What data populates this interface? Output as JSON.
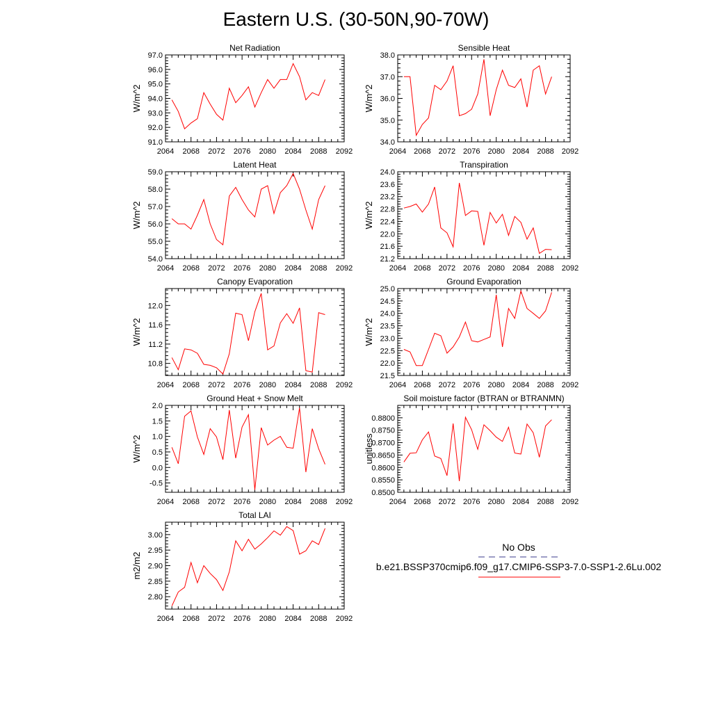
{
  "title": "Eastern U.S. (30-50N,90-70W)",
  "colors": {
    "model": "#ff0000",
    "obs": "#3a3a8c",
    "axis": "#000000"
  },
  "legend": {
    "obs_label": "No Obs",
    "model_label": "b.e21.BSSP370cmip6.f09_g17.CMIP6-SSP3-7.0-SSP1-2.6Lu.002"
  },
  "chart_data": [
    {
      "id": "net-radiation",
      "type": "line",
      "title": "Net Radiation",
      "ylabel": "W/m^2",
      "xlim": [
        2064,
        2092
      ],
      "ylim": [
        91,
        97
      ],
      "xticks": [
        2064,
        2068,
        2072,
        2076,
        2080,
        2084,
        2088,
        2092
      ],
      "xtick_labels": [
        "2064",
        "2068",
        "2072",
        "2076",
        "2080",
        "2084",
        "2088",
        "2092"
      ],
      "yticks": [
        91,
        92,
        93,
        94,
        95,
        96,
        97
      ],
      "ytick_labels": [
        "91.0",
        "92.0",
        "93.0",
        "94.0",
        "95.0",
        "96.0",
        "97.0"
      ],
      "x": [
        2065,
        2066,
        2067,
        2068,
        2069,
        2070,
        2071,
        2072,
        2073,
        2074,
        2075,
        2076,
        2077,
        2078,
        2079,
        2080,
        2081,
        2082,
        2083,
        2084,
        2085,
        2086,
        2087,
        2088,
        2089
      ],
      "y": [
        93.9,
        93.1,
        91.9,
        92.3,
        92.6,
        94.4,
        93.6,
        92.9,
        92.5,
        94.7,
        93.7,
        94.2,
        94.8,
        93.4,
        94.4,
        95.3,
        94.7,
        95.3,
        95.3,
        96.4,
        95.5,
        93.9,
        94.4,
        94.2,
        95.3
      ]
    },
    {
      "id": "sensible-heat",
      "type": "line",
      "title": "Sensible Heat",
      "ylabel": "W/m^2",
      "xlim": [
        2064,
        2092
      ],
      "ylim": [
        34,
        38
      ],
      "xticks": [
        2064,
        2068,
        2072,
        2076,
        2080,
        2084,
        2088,
        2092
      ],
      "xtick_labels": [
        "2064",
        "2068",
        "2072",
        "2076",
        "2080",
        "2084",
        "2088",
        "2092"
      ],
      "yticks": [
        34,
        35,
        36,
        37,
        38
      ],
      "ytick_labels": [
        "34.0",
        "35.0",
        "36.0",
        "37.0",
        "38.0"
      ],
      "x": [
        2065,
        2066,
        2067,
        2068,
        2069,
        2070,
        2071,
        2072,
        2073,
        2074,
        2075,
        2076,
        2077,
        2078,
        2079,
        2080,
        2081,
        2082,
        2083,
        2084,
        2085,
        2086,
        2087,
        2088,
        2089
      ],
      "y": [
        37.0,
        37.0,
        34.3,
        34.8,
        35.1,
        36.6,
        36.4,
        36.8,
        37.5,
        35.2,
        35.3,
        35.5,
        36.2,
        37.8,
        35.2,
        36.4,
        37.3,
        36.6,
        36.5,
        36.9,
        35.6,
        37.3,
        37.5,
        36.2,
        37.0
      ]
    },
    {
      "id": "latent-heat",
      "type": "line",
      "title": "Latent Heat",
      "ylabel": "W/m^2",
      "xlim": [
        2064,
        2092
      ],
      "ylim": [
        54,
        59
      ],
      "xticks": [
        2064,
        2068,
        2072,
        2076,
        2080,
        2084,
        2088,
        2092
      ],
      "xtick_labels": [
        "2064",
        "2068",
        "2072",
        "2076",
        "2080",
        "2084",
        "2088",
        "2092"
      ],
      "yticks": [
        54,
        55,
        56,
        57,
        58,
        59
      ],
      "ytick_labels": [
        "54.0",
        "55.0",
        "56.0",
        "57.0",
        "58.0",
        "59.0"
      ],
      "x": [
        2065,
        2066,
        2067,
        2068,
        2069,
        2070,
        2071,
        2072,
        2073,
        2074,
        2075,
        2076,
        2077,
        2078,
        2079,
        2080,
        2081,
        2082,
        2083,
        2084,
        2085,
        2086,
        2087,
        2088,
        2089
      ],
      "y": [
        56.3,
        56.0,
        56.0,
        55.7,
        56.5,
        57.4,
        56.0,
        55.1,
        54.8,
        57.6,
        58.1,
        57.4,
        56.8,
        56.4,
        58.0,
        58.2,
        56.6,
        57.8,
        58.2,
        58.9,
        58.0,
        56.8,
        55.7,
        57.4,
        58.2
      ]
    },
    {
      "id": "transpiration",
      "type": "line",
      "title": "Transpiration",
      "ylabel": "W/m^2",
      "xlim": [
        2064,
        2092
      ],
      "ylim": [
        21.2,
        24.0
      ],
      "xticks": [
        2064,
        2068,
        2072,
        2076,
        2080,
        2084,
        2088,
        2092
      ],
      "xtick_labels": [
        "2064",
        "2068",
        "2072",
        "2076",
        "2080",
        "2084",
        "2088",
        "2092"
      ],
      "yticks": [
        21.2,
        21.6,
        22.0,
        22.4,
        22.8,
        23.2,
        23.6,
        24.0
      ],
      "ytick_labels": [
        "21.2",
        "21.6",
        "22.0",
        "22.4",
        "22.8",
        "23.2",
        "23.6",
        "24.0"
      ],
      "x": [
        2065,
        2066,
        2067,
        2068,
        2069,
        2070,
        2071,
        2072,
        2073,
        2074,
        2075,
        2076,
        2077,
        2078,
        2079,
        2080,
        2081,
        2082,
        2083,
        2084,
        2085,
        2086,
        2087,
        2088,
        2089
      ],
      "y": [
        22.83,
        22.88,
        22.96,
        22.7,
        22.96,
        23.51,
        22.19,
        22.03,
        21.58,
        23.64,
        22.59,
        22.74,
        22.72,
        21.63,
        22.69,
        22.35,
        22.63,
        21.95,
        22.56,
        22.37,
        21.83,
        22.19,
        21.37,
        21.5,
        21.49
      ]
    },
    {
      "id": "canopy-evaporation",
      "type": "line",
      "title": "Canopy Evaporation",
      "ylabel": "W/m^2",
      "xlim": [
        2064,
        2092
      ],
      "ylim": [
        10.55,
        12.35
      ],
      "xticks": [
        2064,
        2068,
        2072,
        2076,
        2080,
        2084,
        2088,
        2092
      ],
      "xtick_labels": [
        "2064",
        "2068",
        "2072",
        "2076",
        "2080",
        "2084",
        "2088",
        "2092"
      ],
      "yticks": [
        10.8,
        11.2,
        11.6,
        12.0
      ],
      "ytick_labels": [
        "10.8",
        "11.2",
        "11.6",
        "12.0"
      ],
      "x": [
        2065,
        2066,
        2067,
        2068,
        2069,
        2070,
        2071,
        2072,
        2073,
        2074,
        2075,
        2076,
        2077,
        2078,
        2079,
        2080,
        2081,
        2082,
        2083,
        2084,
        2085,
        2086,
        2087,
        2088,
        2089
      ],
      "y": [
        10.92,
        10.67,
        11.1,
        11.08,
        11.01,
        10.78,
        10.76,
        10.71,
        10.58,
        11.0,
        11.84,
        11.81,
        11.27,
        11.87,
        12.25,
        11.08,
        11.16,
        11.64,
        11.83,
        11.63,
        11.95,
        10.65,
        10.62,
        11.85,
        11.81
      ]
    },
    {
      "id": "ground-evaporation",
      "type": "line",
      "title": "Ground Evaporation",
      "ylabel": "W/m^2",
      "xlim": [
        2064,
        2092
      ],
      "ylim": [
        21.5,
        25.0
      ],
      "xticks": [
        2064,
        2068,
        2072,
        2076,
        2080,
        2084,
        2088,
        2092
      ],
      "xtick_labels": [
        "2064",
        "2068",
        "2072",
        "2076",
        "2080",
        "2084",
        "2088",
        "2092"
      ],
      "yticks": [
        21.5,
        22.0,
        22.5,
        23.0,
        23.5,
        24.0,
        24.5,
        25.0
      ],
      "ytick_labels": [
        "21.5",
        "22.0",
        "22.5",
        "23.0",
        "23.5",
        "24.0",
        "24.5",
        "25.0"
      ],
      "x": [
        2065,
        2066,
        2067,
        2068,
        2069,
        2070,
        2071,
        2072,
        2073,
        2074,
        2075,
        2076,
        2077,
        2078,
        2079,
        2080,
        2081,
        2082,
        2083,
        2084,
        2085,
        2086,
        2087,
        2088,
        2089
      ],
      "y": [
        22.55,
        22.45,
        21.9,
        21.9,
        22.55,
        23.2,
        23.1,
        22.4,
        22.65,
        23.05,
        23.65,
        22.9,
        22.85,
        22.95,
        23.05,
        24.75,
        22.65,
        24.2,
        23.8,
        24.9,
        24.2,
        24.0,
        23.8,
        24.1,
        24.85
      ]
    },
    {
      "id": "ground-heat-snow-melt",
      "type": "line",
      "title": "Ground Heat + Snow Melt",
      "ylabel": "W/m^2",
      "xlim": [
        2064,
        2092
      ],
      "ylim": [
        -0.8,
        2.0
      ],
      "xticks": [
        2064,
        2068,
        2072,
        2076,
        2080,
        2084,
        2088,
        2092
      ],
      "xtick_labels": [
        "2064",
        "2068",
        "2072",
        "2076",
        "2080",
        "2084",
        "2088",
        "2092"
      ],
      "yticks": [
        -0.5,
        0.0,
        0.5,
        1.0,
        1.5,
        2.0
      ],
      "ytick_labels": [
        "-0.5",
        "0.0",
        "0.5",
        "1.0",
        "1.5",
        "2.0"
      ],
      "x": [
        2065,
        2066,
        2067,
        2068,
        2069,
        2070,
        2071,
        2072,
        2073,
        2074,
        2075,
        2076,
        2077,
        2078,
        2079,
        2080,
        2081,
        2082,
        2083,
        2084,
        2085,
        2086,
        2087,
        2088,
        2089
      ],
      "y": [
        0.65,
        0.12,
        1.65,
        1.82,
        0.98,
        0.42,
        1.25,
        0.98,
        0.25,
        1.85,
        0.3,
        1.3,
        1.7,
        -0.72,
        1.28,
        0.72,
        0.88,
        1.0,
        0.65,
        0.62,
        1.92,
        -0.15,
        1.25,
        0.6,
        0.1
      ]
    },
    {
      "id": "soil-moisture-factor",
      "type": "line",
      "title": "Soil moisture factor (BTRAN or BTRANMN)",
      "ylabel": "unitless",
      "xlim": [
        2064,
        2092
      ],
      "ylim": [
        0.85,
        0.885
      ],
      "xticks": [
        2064,
        2068,
        2072,
        2076,
        2080,
        2084,
        2088,
        2092
      ],
      "xtick_labels": [
        "2064",
        "2068",
        "2072",
        "2076",
        "2080",
        "2084",
        "2088",
        "2092"
      ],
      "yticks": [
        0.85,
        0.855,
        0.86,
        0.865,
        0.87,
        0.875,
        0.88
      ],
      "ytick_labels": [
        "0.8500",
        "0.8550",
        "0.8600",
        "0.8650",
        "0.8700",
        "0.8750",
        "0.8800"
      ],
      "x": [
        2065,
        2066,
        2067,
        2068,
        2069,
        2070,
        2071,
        2072,
        2073,
        2074,
        2075,
        2076,
        2077,
        2078,
        2079,
        2080,
        2081,
        2082,
        2083,
        2084,
        2085,
        2086,
        2087,
        2088,
        2089
      ],
      "y": [
        0.8622,
        0.8657,
        0.8659,
        0.8711,
        0.8743,
        0.8646,
        0.8636,
        0.8567,
        0.8777,
        0.8545,
        0.8802,
        0.8752,
        0.8673,
        0.8772,
        0.8748,
        0.8722,
        0.8705,
        0.8762,
        0.8658,
        0.8654,
        0.8775,
        0.874,
        0.8641,
        0.8767,
        0.8792
      ]
    },
    {
      "id": "total-lai",
      "type": "line",
      "title": "Total LAI",
      "ylabel": "m2/m2",
      "xlim": [
        2064,
        2092
      ],
      "ylim": [
        2.76,
        3.04
      ],
      "xticks": [
        2064,
        2068,
        2072,
        2076,
        2080,
        2084,
        2088,
        2092
      ],
      "xtick_labels": [
        "2064",
        "2068",
        "2072",
        "2076",
        "2080",
        "2084",
        "2088",
        "2092"
      ],
      "yticks": [
        2.8,
        2.85,
        2.9,
        2.95,
        3.0
      ],
      "ytick_labels": [
        "2.80",
        "2.85",
        "2.90",
        "2.95",
        "3.00"
      ],
      "x": [
        2065,
        2066,
        2067,
        2068,
        2069,
        2070,
        2071,
        2072,
        2073,
        2074,
        2075,
        2076,
        2077,
        2078,
        2079,
        2080,
        2081,
        2082,
        2083,
        2084,
        2085,
        2086,
        2087,
        2088,
        2089
      ],
      "y": [
        2.77,
        2.815,
        2.83,
        2.91,
        2.845,
        2.9,
        2.875,
        2.855,
        2.82,
        2.88,
        2.98,
        2.948,
        2.985,
        2.953,
        2.97,
        2.99,
        3.012,
        2.998,
        3.026,
        3.013,
        2.937,
        2.948,
        2.98,
        2.968,
        3.02
      ]
    }
  ]
}
